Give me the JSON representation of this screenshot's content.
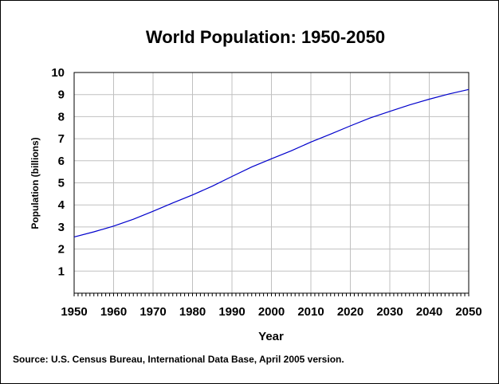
{
  "chart_data": {
    "type": "line",
    "title": "World Population: 1950-2050",
    "xlabel": "Year",
    "ylabel": "Population (billions)",
    "source": "Source: U.S. Census Bureau, International Data Base, April 2005 version.",
    "xlim": [
      1950,
      2050
    ],
    "ylim": [
      0,
      10
    ],
    "xticks": [
      1950,
      1960,
      1970,
      1980,
      1990,
      2000,
      2010,
      2020,
      2030,
      2040,
      2050
    ],
    "yticks": [
      1,
      2,
      3,
      4,
      5,
      6,
      7,
      8,
      9,
      10
    ],
    "grid": true,
    "legend": "none",
    "line_color": "#0000cc",
    "series": [
      {
        "x": [
          1950,
          1955,
          1960,
          1965,
          1970,
          1975,
          1980,
          1985,
          1990,
          1995,
          2000,
          2005,
          2010,
          2015,
          2020,
          2025,
          2030,
          2035,
          2040,
          2045,
          2050
        ],
        "values": [
          2.55,
          2.78,
          3.04,
          3.35,
          3.71,
          4.09,
          4.45,
          4.85,
          5.29,
          5.72,
          6.09,
          6.45,
          6.85,
          7.21,
          7.58,
          7.94,
          8.24,
          8.53,
          8.79,
          9.03,
          9.23
        ]
      }
    ]
  }
}
